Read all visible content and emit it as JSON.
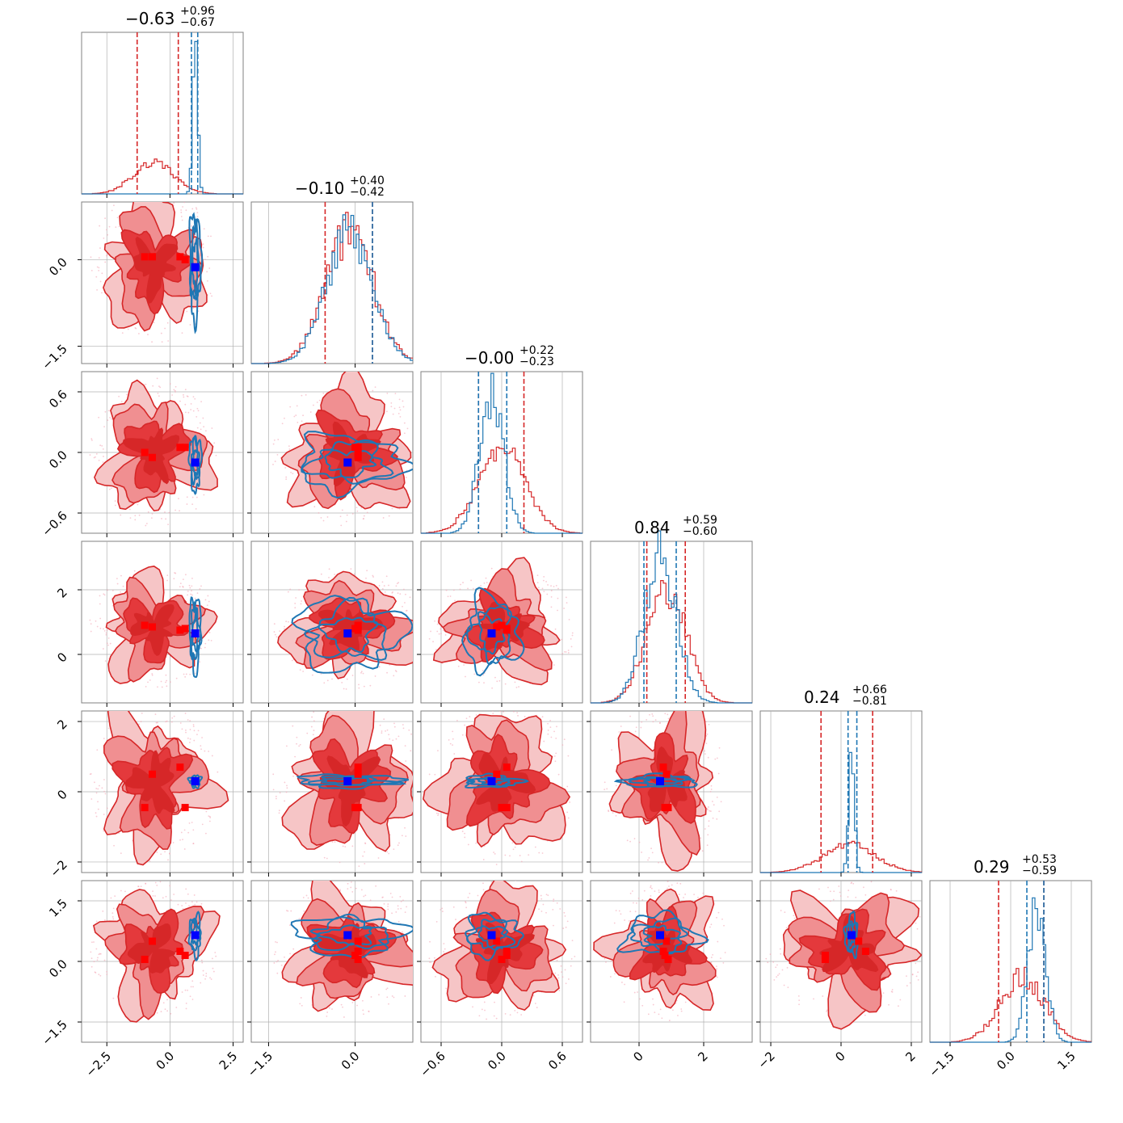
{
  "chart_data": {
    "type": "corner",
    "colors": {
      "broad": "#d62728",
      "narrow": "#1f77b4",
      "truth_marker": "#0000ff",
      "red_marker": "#ff0000",
      "grid": "#b0b0b0",
      "frame": "#808080"
    },
    "params": [
      {
        "index": 0,
        "range": [
          -3.5,
          2.9
        ],
        "ticks": [
          -2.5,
          0.0,
          2.5
        ],
        "tick_labels": [
          "−2.5",
          "0.0",
          "2.5"
        ],
        "title": {
          "main": "−0.63",
          "plus": "+0.96",
          "minus": "−0.67"
        },
        "broad": {
          "mean": -0.63,
          "sd": 0.8,
          "hist_peak": 0.2
        },
        "narrow": {
          "mean": 1.0,
          "sd": 0.1,
          "hist_peak": 0.92
        },
        "quantile_lines": {
          "broad": [
            -1.3,
            0.33
          ],
          "narrow": [
            0.85,
            1.1
          ]
        }
      },
      {
        "index": 1,
        "range": [
          -1.8,
          1.0
        ],
        "ticks": [
          -1.5,
          0.0
        ],
        "tick_labels": [
          "−1.5",
          "0.0"
        ],
        "title": {
          "main": "−0.10",
          "plus": "+0.40",
          "minus": "−0.42"
        },
        "broad": {
          "mean": -0.1,
          "sd": 0.42,
          "hist_peak": 0.8
        },
        "narrow": {
          "mean": -0.1,
          "sd": 0.4,
          "hist_peak": 0.82
        },
        "quantile_lines": {
          "broad": [
            -0.52,
            0.3
          ],
          "narrow": [
            0.3
          ]
        }
      },
      {
        "index": 2,
        "range": [
          -0.8,
          0.8
        ],
        "ticks": [
          -0.6,
          0.0,
          0.6
        ],
        "tick_labels": [
          "−0.6",
          "0.0",
          "0.6"
        ],
        "title": {
          "main": "−0.00",
          "plus": "+0.22",
          "minus": "−0.23"
        },
        "broad": {
          "mean": 0.0,
          "sd": 0.23,
          "hist_peak": 0.52
        },
        "narrow": {
          "mean": -0.1,
          "sd": 0.12,
          "hist_peak": 0.85
        },
        "quantile_lines": {
          "broad": [
            -0.23,
            0.22
          ],
          "narrow": [
            -0.23,
            0.05
          ]
        }
      },
      {
        "index": 3,
        "range": [
          -1.5,
          3.5
        ],
        "ticks": [
          0,
          2
        ],
        "tick_labels": [
          "0",
          "2"
        ],
        "title": {
          "main": "0.84",
          "plus": "+0.59",
          "minus": "−0.60"
        },
        "broad": {
          "mean": 0.84,
          "sd": 0.6,
          "hist_peak": 0.72
        },
        "narrow": {
          "mean": 0.65,
          "sd": 0.5,
          "hist_peak": 0.92
        },
        "quantile_lines": {
          "broad": [
            0.24,
            1.43
          ],
          "narrow": [
            0.15,
            1.15
          ]
        }
      },
      {
        "index": 4,
        "range": [
          -2.3,
          2.3
        ],
        "ticks": [
          -2,
          0,
          2
        ],
        "tick_labels": [
          "−2",
          "0",
          "2"
        ],
        "title": {
          "main": "0.24",
          "plus": "+0.66",
          "minus": "−0.81"
        },
        "broad": {
          "mean": 0.24,
          "sd": 0.75,
          "hist_peak": 0.17
        },
        "narrow": {
          "mean": 0.3,
          "sd": 0.08,
          "hist_peak": 0.82
        },
        "quantile_lines": {
          "broad": [
            -0.57,
            0.9
          ],
          "narrow": [
            0.2,
            0.45
          ]
        }
      },
      {
        "index": 5,
        "range": [
          -2.0,
          2.0
        ],
        "ticks": [
          -1.5,
          0.0,
          1.5
        ],
        "tick_labels": [
          "−1.5",
          "0.0",
          "1.5"
        ],
        "title": {
          "main": "0.29",
          "plus": "+0.53",
          "minus": "−0.59"
        },
        "broad": {
          "mean": 0.29,
          "sd": 0.55,
          "hist_peak": 0.4
        },
        "narrow": {
          "mean": 0.65,
          "sd": 0.22,
          "hist_peak": 0.85
        },
        "quantile_lines": {
          "broad": [
            -0.3,
            0.82
          ],
          "narrow": [
            0.4,
            0.82
          ]
        }
      }
    ],
    "truth_marker": [
      1.0,
      -0.13,
      -0.1,
      0.65,
      0.3,
      0.65
    ],
    "red_markers": [
      [
        -1.0,
        0.05,
        0.0,
        0.9,
        -0.45,
        0.05
      ],
      [
        -0.7,
        0.05,
        -0.05,
        0.85,
        0.5,
        0.5
      ],
      [
        0.4,
        0.05,
        0.05,
        0.75,
        0.7,
        0.25
      ],
      [
        0.6,
        0.0,
        0.05,
        0.8,
        -0.45,
        0.15
      ]
    ],
    "notes": "Lower-triangle 2D panels show filled broad posterior contours with narrow posterior line contours overlaid."
  }
}
